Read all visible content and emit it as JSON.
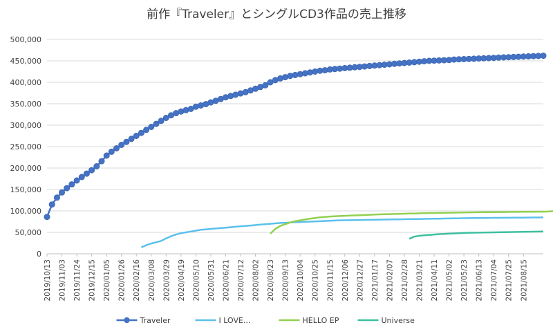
{
  "chart_data": {
    "type": "line",
    "title": "前作『Traveler』とシングルCD3作品の売上推移",
    "xlabel": "",
    "ylabel": "",
    "ylim": [
      0,
      500000
    ],
    "yticks": [
      0,
      50000,
      100000,
      150000,
      200000,
      250000,
      300000,
      350000,
      400000,
      450000,
      500000
    ],
    "ytick_labels": [
      "0",
      "50,000",
      "100,000",
      "150,000",
      "200,000",
      "250,000",
      "300,000",
      "350,000",
      "400,000",
      "450,000",
      "500,000"
    ],
    "x_range_weeks": [
      0,
      100
    ],
    "x_ticks": [
      {
        "week": 0,
        "label": "2019/10/13"
      },
      {
        "week": 3,
        "label": "2019/11/03"
      },
      {
        "week": 6,
        "label": "2019/11/24"
      },
      {
        "week": 9,
        "label": "2019/12/15"
      },
      {
        "week": 12,
        "label": "2020/01/05"
      },
      {
        "week": 15,
        "label": "2020/01/26"
      },
      {
        "week": 18,
        "label": "2020/02/16"
      },
      {
        "week": 21,
        "label": "2020/03/08"
      },
      {
        "week": 24,
        "label": "2020/03/29"
      },
      {
        "week": 27,
        "label": "2020/04/19"
      },
      {
        "week": 30,
        "label": "2020/05/10"
      },
      {
        "week": 33,
        "label": "2020/05/31"
      },
      {
        "week": 36,
        "label": "2020/06/21"
      },
      {
        "week": 39,
        "label": "2020/07/12"
      },
      {
        "week": 42,
        "label": "2020/08/02"
      },
      {
        "week": 45,
        "label": "2020/08/23"
      },
      {
        "week": 48,
        "label": "2020/09/13"
      },
      {
        "week": 51,
        "label": "2020/10/04"
      },
      {
        "week": 54,
        "label": "2020/10/25"
      },
      {
        "week": 57,
        "label": "2020/11/15"
      },
      {
        "week": 60,
        "label": "2020/12/06"
      },
      {
        "week": 63,
        "label": "2020/12/27"
      },
      {
        "week": 66,
        "label": "2021/01/17"
      },
      {
        "week": 69,
        "label": "2021/02/07"
      },
      {
        "week": 72,
        "label": "2021/02/28"
      },
      {
        "week": 75,
        "label": "2021/03/21"
      },
      {
        "week": 78,
        "label": "2021/04/11"
      },
      {
        "week": 81,
        "label": "2021/05/02"
      },
      {
        "week": 84,
        "label": "2021/05/23"
      },
      {
        "week": 87,
        "label": "2021/06/13"
      },
      {
        "week": 90,
        "label": "2021/07/04"
      },
      {
        "week": 93,
        "label": "2021/07/25"
      },
      {
        "week": 96,
        "label": "2021/08/15"
      }
    ],
    "series": [
      {
        "name": "Traveler",
        "color": "#4472c4",
        "marker": "circle",
        "start_week": 0,
        "values": [
          86000,
          115000,
          131000,
          143000,
          153000,
          162000,
          171000,
          179000,
          187000,
          195000,
          204000,
          216000,
          229000,
          238000,
          246000,
          254000,
          261000,
          268000,
          275000,
          282000,
          289000,
          296000,
          303000,
          310000,
          317000,
          323000,
          328000,
          332000,
          335000,
          338000,
          343000,
          346000,
          349000,
          353000,
          357000,
          361000,
          365000,
          368000,
          371000,
          374000,
          377000,
          381000,
          385000,
          389000,
          393000,
          400000,
          405000,
          409000,
          412000,
          415000,
          417000,
          419000,
          421000,
          423000,
          425000,
          427000,
          428000,
          430000,
          431000,
          432000,
          433000,
          434000,
          435000,
          436000,
          437000,
          438000,
          439000,
          440000,
          441000,
          442000,
          443000,
          444000,
          445000,
          446000,
          447000,
          448000,
          449000,
          450000,
          450500,
          451000,
          451500,
          452000,
          453000,
          453500,
          454000,
          454500,
          455000,
          455500,
          456000,
          456500,
          457000,
          457500,
          458000,
          458500,
          459000,
          459500,
          460000,
          460500,
          461000,
          461500,
          462000
        ]
      },
      {
        "name": "I LOVE...",
        "color": "#5bc0eb",
        "marker": "none",
        "start_week": 19,
        "values": [
          15000,
          20000,
          24000,
          27000,
          30000,
          36000,
          41000,
          45000,
          48000,
          50000,
          52000,
          54000,
          56000,
          57000,
          58000,
          59000,
          60000,
          61000,
          62000,
          63000,
          64000,
          65000,
          66000,
          67000,
          68000,
          69000,
          70000,
          71000,
          72000,
          72500,
          73000,
          73500,
          74000,
          74500,
          75000,
          75500,
          76000,
          76500,
          77000,
          77500,
          78000,
          78200,
          78400,
          78600,
          78800,
          79000,
          79200,
          79400,
          79600,
          79800,
          80000,
          80200,
          80400,
          80600,
          80800,
          81000,
          81200,
          81400,
          81600,
          81800,
          82000,
          82200,
          82400,
          82600,
          82800,
          83000,
          83200,
          83400,
          83500,
          83600,
          83700,
          83800,
          83900,
          84000,
          84100,
          84200,
          84300,
          84400,
          84500,
          84600,
          84700,
          84800
        ]
      },
      {
        "name": "HELLO EP",
        "color": "#92d050",
        "marker": "none",
        "start_week": 45,
        "values": [
          47000,
          58000,
          65000,
          69000,
          73000,
          76000,
          78000,
          80000,
          82000,
          83500,
          85000,
          86000,
          87000,
          87500,
          88000,
          88500,
          89000,
          89500,
          90000,
          90500,
          91000,
          91500,
          92000,
          92300,
          92600,
          92900,
          93200,
          93500,
          93800,
          94100,
          94400,
          94700,
          95000,
          95200,
          95400,
          95600,
          95800,
          96000,
          96200,
          96400,
          96600,
          96800,
          97000,
          97100,
          97200,
          97300,
          97400,
          97500,
          97600,
          97700,
          97800,
          97900,
          98000,
          98100,
          98200,
          98300,
          98500,
          99500
        ]
      },
      {
        "name": "Universe",
        "color": "#3dbfa0",
        "marker": "none",
        "start_week": 73,
        "values": [
          35000,
          40000,
          42000,
          43000,
          44000,
          45000,
          46000,
          46500,
          47000,
          47500,
          48000,
          48500,
          49000,
          49200,
          49400,
          49600,
          49800,
          50000,
          50200,
          50400,
          50600,
          50800,
          51000,
          51200,
          51400,
          51600,
          51800,
          52000
        ]
      }
    ],
    "legend_position": "bottom"
  }
}
